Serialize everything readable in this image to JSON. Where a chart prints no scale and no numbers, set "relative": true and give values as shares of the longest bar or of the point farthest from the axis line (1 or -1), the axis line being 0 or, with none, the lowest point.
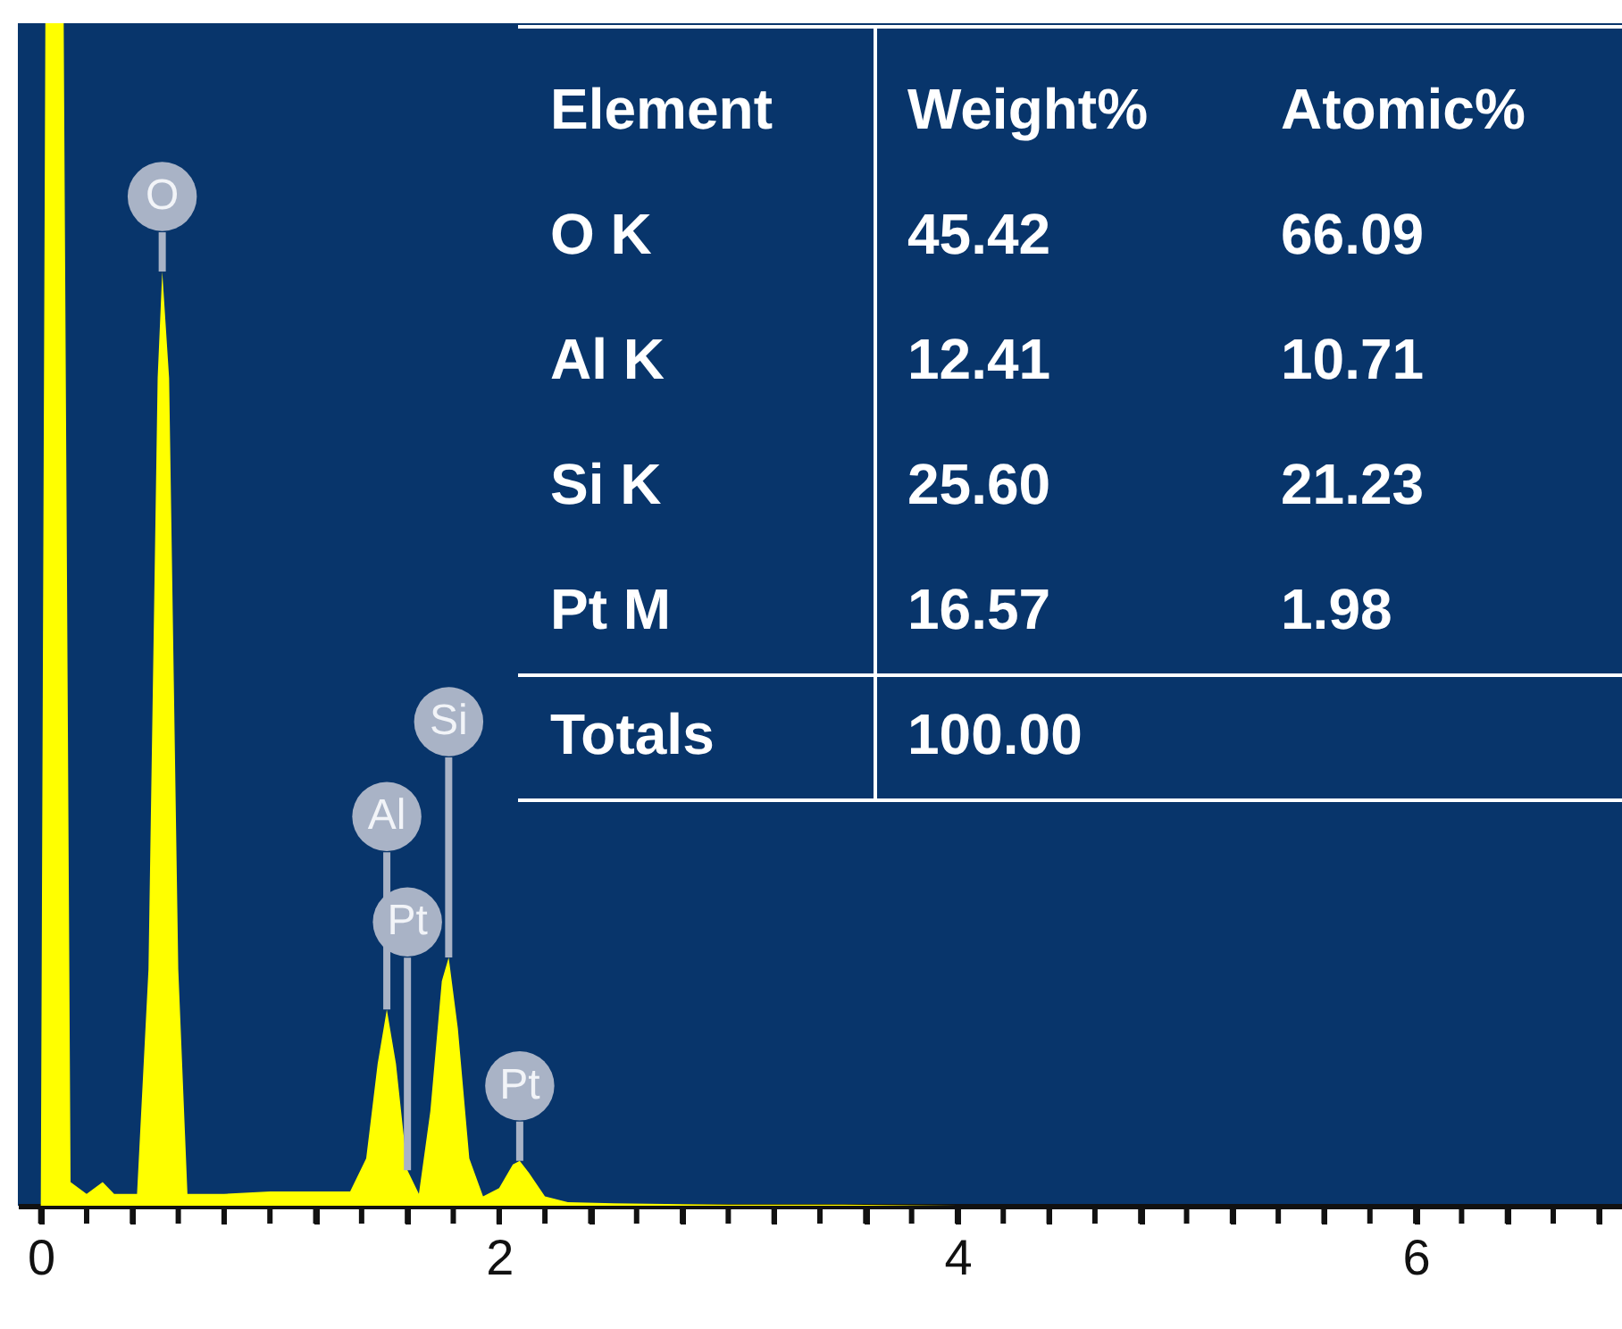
{
  "chart_data": {
    "type": "area",
    "relative": true,
    "color": "#ffff00",
    "x": [
      0,
      0.02,
      0.1,
      0.13,
      0.2,
      0.27,
      0.32,
      0.42,
      0.47,
      0.51,
      0.53,
      0.56,
      0.6,
      0.64,
      0.8,
      1.0,
      1.2,
      1.35,
      1.42,
      1.47,
      1.51,
      1.55,
      1.6,
      1.65,
      1.7,
      1.75,
      1.78,
      1.82,
      1.87,
      1.93,
      2.0,
      2.06,
      2.09,
      2.13,
      2.2,
      2.3,
      2.5,
      3.0,
      3.5,
      4.0,
      6.9
    ],
    "values": [
      0,
      1,
      1,
      0.02,
      0.01,
      0.02,
      0.01,
      0.01,
      0.2,
      0.7,
      0.79,
      0.7,
      0.2,
      0.01,
      0.01,
      0.012,
      0.012,
      0.012,
      0.04,
      0.12,
      0.166,
      0.12,
      0.03,
      0.01,
      0.08,
      0.19,
      0.21,
      0.15,
      0.04,
      0.008,
      0.015,
      0.035,
      0.038,
      0.028,
      0.008,
      0.003,
      0.002,
      0.001,
      0.001,
      0,
      0
    ],
    "xlim": [
      -0.1,
      6.9
    ],
    "xticks": [
      0,
      {
        "value": 0.2,
        "label": null
      },
      {
        "value": 0.4,
        "label": null
      },
      {
        "value": 0.6,
        "label": null
      },
      {
        "value": 0.8,
        "label": null
      },
      {
        "value": 1,
        "label": null
      },
      {
        "value": 1.2,
        "label": null
      },
      {
        "value": 1.4,
        "label": null
      },
      {
        "value": 1.6,
        "label": null
      },
      {
        "value": 1.8,
        "label": null
      },
      2,
      {
        "value": 2.2,
        "label": null
      },
      {
        "value": 2.4,
        "label": null
      },
      {
        "value": 2.6,
        "label": null
      },
      {
        "value": 2.8,
        "label": null
      },
      {
        "value": 3,
        "label": null
      },
      {
        "value": 3.2,
        "label": null
      },
      {
        "value": 3.4,
        "label": null
      },
      {
        "value": 3.6,
        "label": null
      },
      {
        "value": 3.8,
        "label": null
      },
      4,
      {
        "value": 4.2,
        "label": null
      },
      {
        "value": 4.4,
        "label": null
      },
      {
        "value": 4.6,
        "label": null
      },
      {
        "value": 4.8,
        "label": null
      },
      {
        "value": 5,
        "label": null
      },
      {
        "value": 5.2,
        "label": null
      },
      {
        "value": 5.4,
        "label": null
      },
      {
        "value": 5.6,
        "label": null
      },
      {
        "value": 5.8,
        "label": null
      },
      6,
      {
        "value": 6.2,
        "label": null
      },
      {
        "value": 6.4,
        "label": null
      },
      {
        "value": 6.6,
        "label": null
      },
      {
        "value": 6.8,
        "label": null
      }
    ],
    "annotations": [
      {
        "text": "O",
        "x": 0.53,
        "y": 0.79
      },
      {
        "text": "Al",
        "x": 1.51,
        "y": 0.166
      },
      {
        "text": "Si",
        "x": 1.78,
        "y": 0.21
      },
      {
        "text": "Pt",
        "x": 1.6,
        "y": 0.03
      },
      {
        "text": "Pt",
        "x": 2.09,
        "y": 0.038
      },
      "Element",
      "Weight%",
      "Atomic%",
      "O K",
      "45.42",
      "66.09",
      "Al K",
      "12.41",
      "10.71",
      "Si K",
      "25.60",
      "21.23",
      "Pt M",
      "16.57",
      "1.98",
      "Totals",
      "100.00"
    ]
  }
}
